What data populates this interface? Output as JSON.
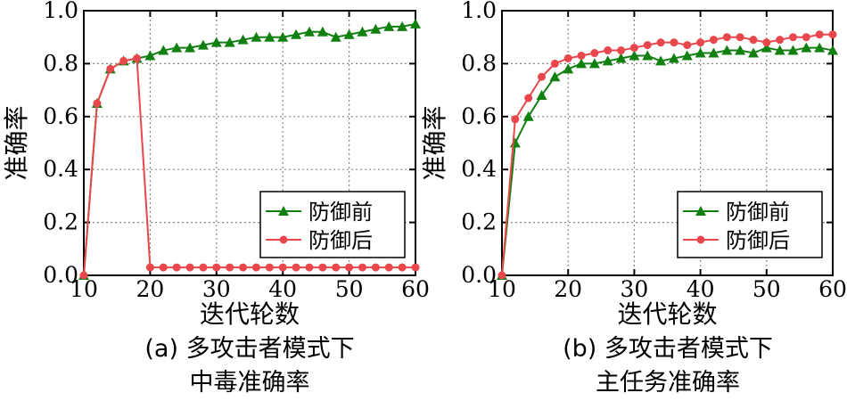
{
  "colors": {
    "before": "#118011",
    "after": "#e8474c"
  },
  "chart_data": [
    {
      "type": "line",
      "xlabel": "迭代轮数",
      "ylabel": "准确率",
      "xlim": [
        10,
        60
      ],
      "ylim": [
        0,
        1
      ],
      "xticks": [
        10,
        20,
        30,
        40,
        50,
        60
      ],
      "yticks": [
        0.0,
        0.2,
        0.4,
        0.6,
        0.8,
        1.0
      ],
      "grid": true,
      "legend": "bottom-right",
      "caption_lines": [
        "(a) 多攻击者模式下",
        "中毒准确率"
      ],
      "series": [
        {
          "name": "防御前",
          "marker": "triangle",
          "x": [
            10,
            12,
            14,
            16,
            18,
            20,
            22,
            24,
            26,
            28,
            30,
            32,
            34,
            36,
            38,
            40,
            42,
            44,
            46,
            48,
            50,
            52,
            54,
            56,
            58,
            60
          ],
          "y": [
            0.0,
            0.65,
            0.78,
            0.81,
            0.82,
            0.83,
            0.85,
            0.86,
            0.86,
            0.87,
            0.88,
            0.88,
            0.89,
            0.9,
            0.9,
            0.9,
            0.91,
            0.92,
            0.92,
            0.9,
            0.91,
            0.92,
            0.93,
            0.94,
            0.94,
            0.95
          ]
        },
        {
          "name": "防御后",
          "marker": "circle",
          "x": [
            10,
            12,
            14,
            16,
            18,
            20,
            22,
            24,
            26,
            28,
            30,
            32,
            34,
            36,
            38,
            40,
            42,
            44,
            46,
            48,
            50,
            52,
            54,
            56,
            58,
            60
          ],
          "y": [
            0.0,
            0.65,
            0.78,
            0.81,
            0.82,
            0.03,
            0.03,
            0.03,
            0.03,
            0.03,
            0.03,
            0.03,
            0.03,
            0.03,
            0.03,
            0.03,
            0.03,
            0.03,
            0.03,
            0.03,
            0.03,
            0.03,
            0.03,
            0.03,
            0.03,
            0.03
          ]
        }
      ]
    },
    {
      "type": "line",
      "xlabel": "迭代轮数",
      "ylabel": "准确率",
      "xlim": [
        10,
        60
      ],
      "ylim": [
        0,
        1
      ],
      "xticks": [
        10,
        20,
        30,
        40,
        50,
        60
      ],
      "yticks": [
        0.0,
        0.2,
        0.4,
        0.6,
        0.8,
        1.0
      ],
      "grid": true,
      "legend": "bottom-right",
      "caption_lines": [
        "(b) 多攻击者模式下",
        "主任务准确率"
      ],
      "series": [
        {
          "name": "防御前",
          "marker": "triangle",
          "x": [
            10,
            12,
            14,
            16,
            18,
            20,
            22,
            24,
            26,
            28,
            30,
            32,
            34,
            36,
            38,
            40,
            42,
            44,
            46,
            48,
            50,
            52,
            54,
            56,
            58,
            60
          ],
          "y": [
            0.0,
            0.5,
            0.6,
            0.68,
            0.75,
            0.78,
            0.8,
            0.8,
            0.81,
            0.82,
            0.83,
            0.83,
            0.81,
            0.82,
            0.83,
            0.84,
            0.84,
            0.85,
            0.85,
            0.84,
            0.86,
            0.85,
            0.85,
            0.86,
            0.86,
            0.85
          ]
        },
        {
          "name": "防御后",
          "marker": "circle",
          "x": [
            10,
            12,
            14,
            16,
            18,
            20,
            22,
            24,
            26,
            28,
            30,
            32,
            34,
            36,
            38,
            40,
            42,
            44,
            46,
            48,
            50,
            52,
            54,
            56,
            58,
            60
          ],
          "y": [
            0.0,
            0.59,
            0.67,
            0.75,
            0.8,
            0.82,
            0.83,
            0.84,
            0.85,
            0.85,
            0.86,
            0.87,
            0.88,
            0.88,
            0.87,
            0.88,
            0.89,
            0.9,
            0.9,
            0.89,
            0.88,
            0.89,
            0.9,
            0.9,
            0.91,
            0.91
          ]
        }
      ]
    }
  ]
}
